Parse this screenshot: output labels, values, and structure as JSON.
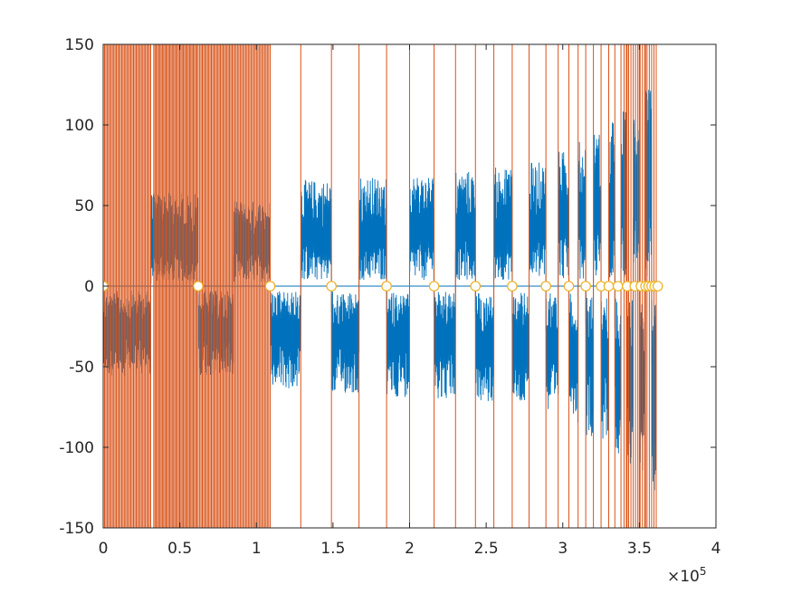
{
  "chart_data": {
    "type": "line",
    "title": "",
    "xlabel": "",
    "ylabel": "",
    "xlim": [
      0,
      400000
    ],
    "ylim": [
      -150,
      150
    ],
    "x_exponent_label": "×10",
    "x_exponent_power": "5",
    "xticks": [
      0,
      50000,
      100000,
      150000,
      200000,
      250000,
      300000,
      350000,
      400000
    ],
    "xtick_labels": [
      "0",
      "0.5",
      "1",
      "1.5",
      "2",
      "2.5",
      "3",
      "3.5",
      "4"
    ],
    "yticks": [
      150,
      100,
      50,
      0,
      -50,
      -100,
      -150
    ],
    "ytick_labels": [
      "150",
      "100",
      "50",
      "0",
      "-50",
      "-100",
      "-150"
    ],
    "grid": false,
    "box": true,
    "colors": {
      "signal": "#0072BD",
      "square": "#D95319",
      "markers": "#EDB120",
      "axis": "#262626"
    },
    "segments": [
      {
        "x0": 0,
        "x1": 31000,
        "sign": -1,
        "amp": 56
      },
      {
        "x0": 31000,
        "x1": 62000,
        "sign": 1,
        "amp": 58
      },
      {
        "x0": 62000,
        "x1": 85000,
        "sign": -1,
        "amp": 56
      },
      {
        "x0": 85000,
        "x1": 109000,
        "sign": 1,
        "amp": 53
      },
      {
        "x0": 109000,
        "x1": 129000,
        "sign": -1,
        "amp": 64
      },
      {
        "x0": 129000,
        "x1": 149000,
        "sign": 1,
        "amp": 66
      },
      {
        "x0": 149000,
        "x1": 167000,
        "sign": -1,
        "amp": 67
      },
      {
        "x0": 167000,
        "x1": 185000,
        "sign": 1,
        "amp": 68
      },
      {
        "x0": 185000,
        "x1": 200000,
        "sign": -1,
        "amp": 69
      },
      {
        "x0": 200000,
        "x1": 216000,
        "sign": 1,
        "amp": 70
      },
      {
        "x0": 216000,
        "x1": 230000,
        "sign": -1,
        "amp": 70
      },
      {
        "x0": 230000,
        "x1": 243000,
        "sign": 1,
        "amp": 72
      },
      {
        "x0": 243000,
        "x1": 255000,
        "sign": -1,
        "amp": 73
      },
      {
        "x0": 255000,
        "x1": 267000,
        "sign": 1,
        "amp": 74
      },
      {
        "x0": 267000,
        "x1": 278000,
        "sign": -1,
        "amp": 75
      },
      {
        "x0": 278000,
        "x1": 289000,
        "sign": 1,
        "amp": 77
      },
      {
        "x0": 289000,
        "x1": 297000,
        "sign": -1,
        "amp": 81
      },
      {
        "x0": 297000,
        "x1": 304000,
        "sign": 1,
        "amp": 84
      },
      {
        "x0": 304000,
        "x1": 310000,
        "sign": -1,
        "amp": 87
      },
      {
        "x0": 310000,
        "x1": 315000,
        "sign": 1,
        "amp": 90
      },
      {
        "x0": 315000,
        "x1": 320000,
        "sign": -1,
        "amp": 93
      },
      {
        "x0": 320000,
        "x1": 325000,
        "sign": 1,
        "amp": 96
      },
      {
        "x0": 325000,
        "x1": 330000,
        "sign": -1,
        "amp": 100
      },
      {
        "x0": 330000,
        "x1": 334000,
        "sign": 1,
        "amp": 103
      },
      {
        "x0": 334000,
        "x1": 338000,
        "sign": -1,
        "amp": 106
      },
      {
        "x0": 338000,
        "x1": 342000,
        "sign": 1,
        "amp": 110
      },
      {
        "x0": 342000,
        "x1": 346000,
        "sign": -1,
        "amp": 113
      },
      {
        "x0": 346000,
        "x1": 350000,
        "sign": 1,
        "amp": 116
      },
      {
        "x0": 350000,
        "x1": 354000,
        "sign": -1,
        "amp": 119
      },
      {
        "x0": 354000,
        "x1": 358000,
        "sign": 1,
        "amp": 122
      },
      {
        "x0": 358000,
        "x1": 361000,
        "sign": -1,
        "amp": 128
      }
    ],
    "square_wave": {
      "amplitude": 150,
      "dense_bursts": [
        {
          "x0": 0,
          "x1": 31000,
          "cycles": 18
        },
        {
          "x0": 33000,
          "x1": 62000,
          "cycles": 18
        },
        {
          "x0": 63000,
          "x1": 85000,
          "cycles": 13
        },
        {
          "x0": 85000,
          "x1": 108000,
          "cycles": 13
        }
      ],
      "toggle_points": [
        109000,
        129000,
        149000,
        167000,
        185000,
        200000,
        216000,
        230000,
        243000,
        255000,
        267000,
        278000,
        289000,
        297000,
        304000,
        310000,
        315000,
        320000,
        325000,
        330000,
        334000,
        338000,
        342000,
        346000,
        350000,
        354000,
        358000,
        361000
      ]
    },
    "markers": {
      "y": 0,
      "x": [
        0,
        62000,
        109000,
        149000,
        185000,
        216000,
        243000,
        267000,
        289000,
        304000,
        315000,
        325000,
        330000,
        336000,
        342000,
        347000,
        351000,
        354000,
        356000,
        358000,
        360000,
        362000
      ]
    }
  }
}
